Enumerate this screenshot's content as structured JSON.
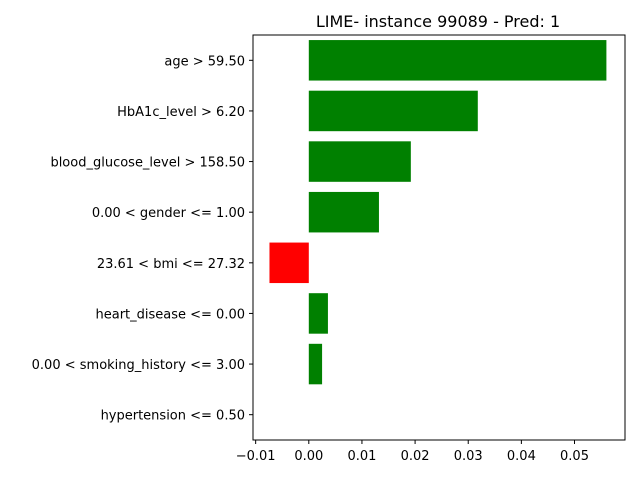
{
  "chart_data": {
    "type": "bar",
    "orientation": "horizontal",
    "title": "LIME- instance 99089 - Pred: 1",
    "xlabel": "",
    "ylabel": "",
    "xlim": [
      -0.0105,
      0.0595
    ],
    "xticks": [
      -0.01,
      0.0,
      0.01,
      0.02,
      0.03,
      0.04,
      0.05
    ],
    "xtick_labels": [
      "−0.01",
      "0.00",
      "0.01",
      "0.02",
      "0.03",
      "0.04",
      "0.05"
    ],
    "categories": [
      "age > 59.50",
      "HbA1c_level > 6.20",
      "blood_glucose_level > 158.50",
      "0.00 < gender <= 1.00",
      "23.61 < bmi <= 27.32",
      "heart_disease <= 0.00",
      "0.00 < smoking_history <= 3.00",
      "hypertension <= 0.50"
    ],
    "values": [
      0.056,
      0.0318,
      0.0192,
      0.0132,
      -0.0074,
      0.0036,
      0.0025,
      0.0
    ],
    "positive_color": "#008000",
    "negative_color": "#ff0000",
    "grid": false,
    "legend": "none"
  }
}
